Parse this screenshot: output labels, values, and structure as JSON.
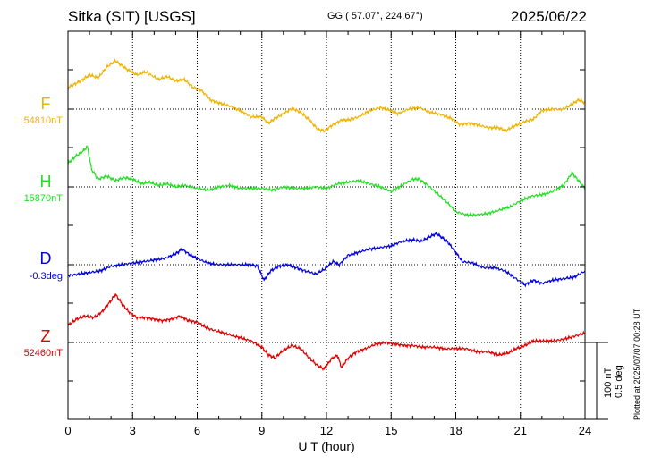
{
  "header": {
    "station": "Sitka (SIT)  [USGS]",
    "coords": "GG ( 57.07°, 224.67°)",
    "date": "2025/06/22"
  },
  "scale": {
    "label_nt": "100 nT",
    "label_deg": "0.5 deg"
  },
  "plotted_note": "Plotted at 2025/07/07 00:28 UT",
  "chart_data": {
    "type": "line",
    "xlabel": "U T (hour)",
    "xlim": [
      0,
      24
    ],
    "xticks": [
      0,
      3,
      6,
      9,
      12,
      15,
      18,
      21,
      24
    ],
    "xtick_labels": [
      "0",
      "3",
      "6",
      "9",
      "12",
      "15",
      "18",
      "21",
      "24"
    ],
    "grid": true,
    "scale_bar": {
      "nT": 100,
      "deg": 0.5
    },
    "series": [
      {
        "name": "F",
        "baseline_label": "54810nT",
        "unit": "nT",
        "baseline": 54810,
        "color": "#f0b400",
        "points": [
          [
            0,
            54838
          ],
          [
            0.3,
            54842
          ],
          [
            0.7,
            54848
          ],
          [
            1,
            54854
          ],
          [
            1.4,
            54850
          ],
          [
            1.8,
            54864
          ],
          [
            2.2,
            54872
          ],
          [
            2.5,
            54866
          ],
          [
            2.8,
            54860
          ],
          [
            3.2,
            54854
          ],
          [
            3.6,
            54858
          ],
          [
            4.2,
            54848
          ],
          [
            4.6,
            54852
          ],
          [
            5,
            54846
          ],
          [
            5.4,
            54848
          ],
          [
            5.8,
            54838
          ],
          [
            6.2,
            54834
          ],
          [
            6.6,
            54822
          ],
          [
            7,
            54818
          ],
          [
            7.5,
            54814
          ],
          [
            8,
            54808
          ],
          [
            8.5,
            54800
          ],
          [
            9,
            54800
          ],
          [
            9.3,
            54792
          ],
          [
            9.6,
            54798
          ],
          [
            10,
            54804
          ],
          [
            10.4,
            54811
          ],
          [
            10.8,
            54806
          ],
          [
            11.2,
            54796
          ],
          [
            11.6,
            54784
          ],
          [
            11.9,
            54782
          ],
          [
            12.3,
            54790
          ],
          [
            12.7,
            54796
          ],
          [
            13,
            54796
          ],
          [
            13.5,
            54800
          ],
          [
            14,
            54808
          ],
          [
            14.5,
            54812
          ],
          [
            15,
            54808
          ],
          [
            15.3,
            54804
          ],
          [
            15.8,
            54810
          ],
          [
            16.3,
            54812
          ],
          [
            16.8,
            54806
          ],
          [
            17.3,
            54803
          ],
          [
            17.8,
            54798
          ],
          [
            18.2,
            54790
          ],
          [
            18.6,
            54792
          ],
          [
            19,
            54790
          ],
          [
            19.5,
            54786
          ],
          [
            20,
            54786
          ],
          [
            20.3,
            54782
          ],
          [
            20.7,
            54788
          ],
          [
            21.2,
            54794
          ],
          [
            21.6,
            54797
          ],
          [
            22,
            54808
          ],
          [
            22.5,
            54810
          ],
          [
            23,
            54810
          ],
          [
            23.4,
            54816
          ],
          [
            23.7,
            54822
          ],
          [
            24,
            54818
          ]
        ]
      },
      {
        "name": "H",
        "baseline_label": "15870nT",
        "unit": "nT",
        "baseline": 15870,
        "color": "#22e022",
        "points": [
          [
            0,
            15900
          ],
          [
            0.3,
            15908
          ],
          [
            0.7,
            15916
          ],
          [
            0.9,
            15922
          ],
          [
            1.1,
            15892
          ],
          [
            1.4,
            15880
          ],
          [
            1.8,
            15884
          ],
          [
            2.2,
            15878
          ],
          [
            2.6,
            15882
          ],
          [
            3,
            15880
          ],
          [
            3.4,
            15874
          ],
          [
            3.8,
            15876
          ],
          [
            4.2,
            15872
          ],
          [
            4.6,
            15874
          ],
          [
            5,
            15870
          ],
          [
            5.4,
            15872
          ],
          [
            6,
            15868
          ],
          [
            6.6,
            15866
          ],
          [
            7,
            15870
          ],
          [
            7.5,
            15872
          ],
          [
            8,
            15868
          ],
          [
            8.5,
            15868
          ],
          [
            9,
            15868
          ],
          [
            9.5,
            15866
          ],
          [
            10,
            15870
          ],
          [
            10.5,
            15868
          ],
          [
            11,
            15868
          ],
          [
            11.5,
            15870
          ],
          [
            12,
            15868
          ],
          [
            12.5,
            15874
          ],
          [
            13,
            15876
          ],
          [
            13.5,
            15878
          ],
          [
            14,
            15874
          ],
          [
            14.5,
            15870
          ],
          [
            15,
            15864
          ],
          [
            15.5,
            15872
          ],
          [
            16,
            15880
          ],
          [
            16.3,
            15880
          ],
          [
            16.7,
            15872
          ],
          [
            17.2,
            15860
          ],
          [
            17.6,
            15850
          ],
          [
            18,
            15838
          ],
          [
            18.5,
            15834
          ],
          [
            19,
            15834
          ],
          [
            19.5,
            15836
          ],
          [
            20,
            15840
          ],
          [
            20.5,
            15844
          ],
          [
            21,
            15852
          ],
          [
            21.5,
            15858
          ],
          [
            22,
            15860
          ],
          [
            22.5,
            15864
          ],
          [
            23,
            15872
          ],
          [
            23.4,
            15888
          ],
          [
            23.7,
            15878
          ],
          [
            24,
            15868
          ]
        ]
      },
      {
        "name": "D",
        "baseline_label": "-0.3deg",
        "unit": "deg",
        "baseline": -0.3,
        "color": "#0000e0",
        "points": [
          [
            0,
            -0.37
          ],
          [
            0.5,
            -0.36
          ],
          [
            1,
            -0.35
          ],
          [
            1.5,
            -0.34
          ],
          [
            2,
            -0.31
          ],
          [
            2.5,
            -0.3
          ],
          [
            3,
            -0.29
          ],
          [
            3.5,
            -0.28
          ],
          [
            4,
            -0.27
          ],
          [
            4.5,
            -0.26
          ],
          [
            5,
            -0.23
          ],
          [
            5.3,
            -0.2
          ],
          [
            5.7,
            -0.24
          ],
          [
            6,
            -0.26
          ],
          [
            6.5,
            -0.29
          ],
          [
            7,
            -0.3
          ],
          [
            7.5,
            -0.3
          ],
          [
            8,
            -0.3
          ],
          [
            8.5,
            -0.3
          ],
          [
            8.8,
            -0.31
          ],
          [
            9.1,
            -0.4
          ],
          [
            9.4,
            -0.34
          ],
          [
            9.8,
            -0.31
          ],
          [
            10.2,
            -0.3
          ],
          [
            10.6,
            -0.32
          ],
          [
            11,
            -0.34
          ],
          [
            11.5,
            -0.36
          ],
          [
            11.9,
            -0.33
          ],
          [
            12.3,
            -0.28
          ],
          [
            12.6,
            -0.3
          ],
          [
            13,
            -0.24
          ],
          [
            13.5,
            -0.22
          ],
          [
            14,
            -0.2
          ],
          [
            14.5,
            -0.19
          ],
          [
            15,
            -0.18
          ],
          [
            15.5,
            -0.15
          ],
          [
            16,
            -0.14
          ],
          [
            16.4,
            -0.15
          ],
          [
            16.8,
            -0.12
          ],
          [
            17.1,
            -0.1
          ],
          [
            17.3,
            -0.12
          ],
          [
            17.6,
            -0.15
          ],
          [
            18,
            -0.22
          ],
          [
            18.3,
            -0.28
          ],
          [
            18.8,
            -0.29
          ],
          [
            19.3,
            -0.32
          ],
          [
            19.8,
            -0.32
          ],
          [
            20.3,
            -0.34
          ],
          [
            20.7,
            -0.38
          ],
          [
            21.2,
            -0.43
          ],
          [
            21.6,
            -0.4
          ],
          [
            22,
            -0.42
          ],
          [
            22.5,
            -0.4
          ],
          [
            23,
            -0.39
          ],
          [
            23.5,
            -0.38
          ],
          [
            24,
            -0.34
          ]
        ]
      },
      {
        "name": "Z",
        "baseline_label": "52460nT",
        "unit": "nT",
        "baseline": 52460,
        "color": "#e00000",
        "points": [
          [
            0,
            52482
          ],
          [
            0.4,
            52490
          ],
          [
            0.8,
            52494
          ],
          [
            1.2,
            52492
          ],
          [
            1.6,
            52500
          ],
          [
            2,
            52514
          ],
          [
            2.2,
            52522
          ],
          [
            2.5,
            52510
          ],
          [
            2.8,
            52500
          ],
          [
            3.2,
            52492
          ],
          [
            3.6,
            52492
          ],
          [
            4,
            52490
          ],
          [
            4.4,
            52488
          ],
          [
            4.8,
            52490
          ],
          [
            5.2,
            52494
          ],
          [
            5.6,
            52488
          ],
          [
            6,
            52486
          ],
          [
            6.5,
            52478
          ],
          [
            7,
            52474
          ],
          [
            7.5,
            52470
          ],
          [
            8,
            52466
          ],
          [
            8.5,
            52462
          ],
          [
            9,
            52454
          ],
          [
            9.3,
            52444
          ],
          [
            9.6,
            52440
          ],
          [
            10,
            52450
          ],
          [
            10.4,
            52456
          ],
          [
            10.8,
            52452
          ],
          [
            11.2,
            52440
          ],
          [
            11.6,
            52430
          ],
          [
            11.9,
            52426
          ],
          [
            12.2,
            52438
          ],
          [
            12.5,
            52444
          ],
          [
            12.7,
            52428
          ],
          [
            13,
            52440
          ],
          [
            13.4,
            52448
          ],
          [
            13.8,
            52452
          ],
          [
            14.3,
            52458
          ],
          [
            14.8,
            52460
          ],
          [
            15.2,
            52458
          ],
          [
            15.6,
            52456
          ],
          [
            16,
            52456
          ],
          [
            16.5,
            52454
          ],
          [
            17,
            52454
          ],
          [
            17.5,
            52452
          ],
          [
            18,
            52452
          ],
          [
            18.5,
            52452
          ],
          [
            19,
            52448
          ],
          [
            19.5,
            52448
          ],
          [
            20,
            52444
          ],
          [
            20.4,
            52446
          ],
          [
            20.8,
            52452
          ],
          [
            21.2,
            52456
          ],
          [
            21.6,
            52462
          ],
          [
            22,
            52462
          ],
          [
            22.5,
            52462
          ],
          [
            23,
            52464
          ],
          [
            23.5,
            52468
          ],
          [
            24,
            52472
          ]
        ]
      }
    ]
  }
}
